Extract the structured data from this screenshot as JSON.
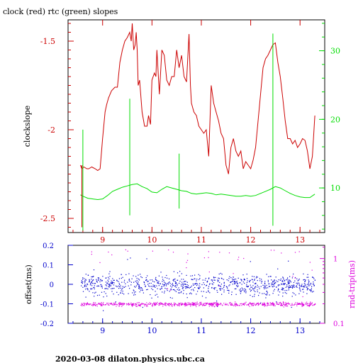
{
  "title": "clock (red) rtc (green) slopes",
  "footer": "2020-03-08  dilaton.physics.ubc.ca",
  "colors": {
    "clock": "#cc0000",
    "rtc": "#00dd00",
    "offset": "#0000cc",
    "rtt": "#dd00dd",
    "axis": "#000000"
  },
  "chart_data": [
    {
      "type": "line",
      "title": "clock (red) rtc (green) slopes",
      "ylabel": "clockslope",
      "y2label": "",
      "xlim": [
        8.3,
        13.5
      ],
      "ylim": [
        -2.58,
        -1.38
      ],
      "y2lim": [
        3.5,
        34.5
      ],
      "xticks": [
        9,
        10,
        11,
        12,
        13
      ],
      "yticks": [
        -1.5,
        -2,
        -2.5
      ],
      "y2ticks": [
        10,
        20,
        30
      ],
      "ytick_labels": [
        "-1.5",
        "-2",
        "-2.5"
      ],
      "y2tick_labels": [
        "10",
        "20",
        "30"
      ],
      "xtick_labels": [
        "9",
        "10",
        "11",
        "12",
        "13"
      ],
      "series": [
        {
          "name": "clock",
          "axis": "left",
          "x": [
            8.55,
            8.58,
            8.62,
            8.68,
            8.72,
            8.78,
            8.85,
            8.9,
            8.95,
            9.0,
            9.05,
            9.08,
            9.12,
            9.18,
            9.25,
            9.3,
            9.35,
            9.4,
            9.45,
            9.5,
            9.55,
            9.58,
            9.6,
            9.63,
            9.66,
            9.68,
            9.7,
            9.72,
            9.75,
            9.8,
            9.85,
            9.9,
            9.93,
            9.97,
            10.0,
            10.05,
            10.08,
            10.1,
            10.15,
            10.2,
            10.25,
            10.3,
            10.35,
            10.4,
            10.45,
            10.5,
            10.55,
            10.6,
            10.65,
            10.7,
            10.75,
            10.78,
            10.8,
            10.85,
            10.9,
            10.95,
            11.0,
            11.05,
            11.1,
            11.15,
            11.2,
            11.25,
            11.3,
            11.35,
            11.4,
            11.45,
            11.5,
            11.55,
            11.6,
            11.65,
            11.7,
            11.75,
            11.8,
            11.85,
            11.9,
            11.95,
            12.0,
            12.05,
            12.1,
            12.15,
            12.2,
            12.25,
            12.3,
            12.35,
            12.4,
            12.45,
            12.5,
            12.55,
            12.6,
            12.65,
            12.7,
            12.75,
            12.8,
            12.85,
            12.9,
            12.95,
            13.0,
            13.05,
            13.1,
            13.15,
            13.2,
            13.25,
            13.3
          ],
          "y": [
            -2.2,
            -2.22,
            -2.21,
            -2.22,
            -2.22,
            -2.21,
            -2.22,
            -2.23,
            -2.22,
            -2.05,
            -1.9,
            -1.86,
            -1.82,
            -1.78,
            -1.76,
            -1.76,
            -1.62,
            -1.55,
            -1.5,
            -1.48,
            -1.45,
            -1.5,
            -1.4,
            -1.55,
            -1.52,
            -1.45,
            -1.55,
            -1.75,
            -1.72,
            -1.9,
            -1.98,
            -1.98,
            -1.92,
            -1.97,
            -1.72,
            -1.68,
            -1.7,
            -1.55,
            -1.8,
            -1.55,
            -1.58,
            -1.72,
            -1.75,
            -1.7,
            -1.7,
            -1.55,
            -1.65,
            -1.58,
            -1.7,
            -1.73,
            -1.46,
            -1.75,
            -1.85,
            -1.9,
            -1.92,
            -1.98,
            -2.0,
            -2.02,
            -2.0,
            -2.15,
            -1.75,
            -1.85,
            -1.9,
            -1.95,
            -2.02,
            -2.05,
            -2.2,
            -2.25,
            -2.1,
            -2.05,
            -2.12,
            -2.15,
            -2.12,
            -2.22,
            -2.18,
            -2.2,
            -2.22,
            -2.17,
            -2.1,
            -1.95,
            -1.8,
            -1.65,
            -1.6,
            -1.58,
            -1.55,
            -1.52,
            -1.51,
            -1.62,
            -1.7,
            -1.82,
            -1.95,
            -2.05,
            -2.05,
            -2.08,
            -2.06,
            -2.1,
            -2.08,
            -2.05,
            -2.06,
            -2.12,
            -2.22,
            -2.15,
            -1.92
          ]
        },
        {
          "name": "rtc",
          "axis": "right",
          "x": [
            8.55,
            8.6,
            8.7,
            8.8,
            8.9,
            9.0,
            9.1,
            9.2,
            9.3,
            9.4,
            9.5,
            9.6,
            9.7,
            9.8,
            9.9,
            10.0,
            10.1,
            10.2,
            10.3,
            10.4,
            10.5,
            10.6,
            10.7,
            10.8,
            10.9,
            11.0,
            11.1,
            11.2,
            11.3,
            11.4,
            11.5,
            11.6,
            11.7,
            11.8,
            11.9,
            12.0,
            12.1,
            12.2,
            12.3,
            12.4,
            12.5,
            12.6,
            12.7,
            12.8,
            12.9,
            13.0,
            13.1,
            13.2,
            13.3
          ],
          "y": [
            9.0,
            8.8,
            8.5,
            8.4,
            8.3,
            8.4,
            8.9,
            9.5,
            9.8,
            10.1,
            10.3,
            10.5,
            10.6,
            10.2,
            9.9,
            9.4,
            9.3,
            9.8,
            10.2,
            10.0,
            9.8,
            9.6,
            9.5,
            9.2,
            9.1,
            9.2,
            9.3,
            9.2,
            9.0,
            9.1,
            9.0,
            8.9,
            8.8,
            8.8,
            8.9,
            8.8,
            8.9,
            9.2,
            9.5,
            9.8,
            10.2,
            10.0,
            9.6,
            9.2,
            8.9,
            8.7,
            8.6,
            8.6,
            9.1
          ]
        }
      ],
      "spikes": [
        {
          "series": "rtc",
          "x": 8.6,
          "top": 18.5,
          "bottom": 3.8
        },
        {
          "series": "rtc",
          "x": 9.55,
          "top": 23.0,
          "bottom": 6.0
        },
        {
          "series": "rtc",
          "x": 10.55,
          "top": 15.0,
          "bottom": 7.0
        },
        {
          "series": "rtc",
          "x": 12.45,
          "top": 32.5,
          "bottom": 4.5
        },
        {
          "series": "clock",
          "x": 8.58,
          "top": -2.2,
          "bottom": -2.55
        }
      ]
    },
    {
      "type": "scatter",
      "ylabel": "offset(ms)",
      "y2label": "rnd-trip(ms)",
      "xlim": [
        8.3,
        13.5
      ],
      "ylim": [
        -0.2,
        0.2
      ],
      "y2lim_log": [
        0.1,
        1.6
      ],
      "yticks": [
        0.2,
        0.1,
        0,
        -0.1,
        -0.2
      ],
      "ytick_labels": [
        "0.2",
        "0.1",
        "0",
        "-0.1",
        "-0.2"
      ],
      "y2ticks": [
        1,
        0.1
      ],
      "y2tick_labels": [
        "1",
        "0.1"
      ],
      "xticks": [
        9,
        10,
        11,
        12,
        13
      ],
      "xtick_labels": [
        "9",
        "10",
        "11",
        "12",
        "13"
      ],
      "series": [
        {
          "name": "offset",
          "axis": "left",
          "x_range": [
            8.55,
            13.3
          ],
          "center": 0.0,
          "spread": 0.045,
          "count": 900
        },
        {
          "name": "rnd-trip",
          "axis": "right",
          "x_range": [
            8.55,
            13.3
          ],
          "center": 0.2,
          "spread": 0.012,
          "count": 700
        }
      ]
    }
  ]
}
